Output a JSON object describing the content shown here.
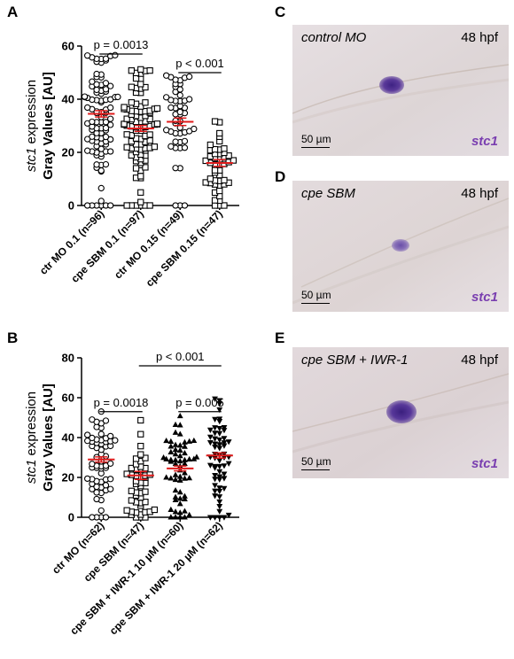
{
  "panels": {
    "A": "A",
    "B": "B",
    "C": "C",
    "D": "D",
    "E": "E"
  },
  "micrographs": [
    {
      "letter": "C",
      "condition": "control MO",
      "stage": "48 hpf",
      "gene": "stc1",
      "scale_bar": "50 µm"
    },
    {
      "letter": "D",
      "condition": "cpe SBM",
      "stage": "48 hpf",
      "gene": "stc1",
      "scale_bar": "50 µm"
    },
    {
      "letter": "E",
      "condition": "cpe SBM + IWR-1",
      "stage": "48 hpf",
      "gene": "stc1",
      "scale_bar": "50 µm"
    }
  ],
  "colors": {
    "mean_line": "#e01b1b",
    "stain": "#4b2a8f",
    "tissue": "#e4dde0",
    "gene_label": "#7a3fb0"
  },
  "chart_data": [
    {
      "type": "scatter",
      "panel": "A",
      "ylabel_gene": "stc1",
      "ylabel_rest": " expression",
      "ylabel": "Gray Values [AU]",
      "ylim": [
        0,
        60
      ],
      "yticks": [
        0,
        20,
        40,
        60
      ],
      "categories": [
        "ctr MO 0.1 (n=96)",
        "cpe SBM 0.1 (n=97)",
        "ctr MO 0.15 (n=49)",
        "cpe SBM 0.15 (n=47)"
      ],
      "markers": [
        "circle",
        "square",
        "circle",
        "square"
      ],
      "n": [
        96,
        97,
        49,
        47
      ],
      "means": [
        34.5,
        29,
        31.5,
        16
      ],
      "sems": [
        1.2,
        1.1,
        1.4,
        1.3
      ],
      "spread": [
        [
          0,
          57
        ],
        [
          0,
          52
        ],
        [
          0,
          49
        ],
        [
          0,
          36
        ]
      ],
      "comparisons": [
        {
          "label": "p = 0.0013",
          "from": 0,
          "to": 1,
          "y": 57
        },
        {
          "label": "p < 0.001",
          "from": 2,
          "to": 3,
          "y": 50
        }
      ]
    },
    {
      "type": "scatter",
      "panel": "B",
      "ylabel_gene": "stc1",
      "ylabel_rest": " expression",
      "ylabel": "Gray Values [AU]",
      "ylim": [
        0,
        80
      ],
      "yticks": [
        0,
        20,
        40,
        60,
        80
      ],
      "categories": [
        "ctr MO (n=62)",
        "cpe SBM (n=47)",
        "cpe SBM + IWR-1 10 µM (n=60)",
        "cpe SBM + IWR-1 20 µM (n=62)"
      ],
      "markers": [
        "circle",
        "square",
        "triangle-up",
        "triangle-down"
      ],
      "n": [
        62,
        47,
        60,
        62
      ],
      "means": [
        29,
        21,
        24.5,
        31
      ],
      "sems": [
        1.3,
        2,
        1.2,
        1.3
      ],
      "spread": [
        [
          0,
          54
        ],
        [
          0,
          50
        ],
        [
          0,
          51
        ],
        [
          0,
          60
        ]
      ],
      "comparisons": [
        {
          "label": "p = 0.0018",
          "from": 0,
          "to": 1,
          "y": 53
        },
        {
          "label": "p = 0.005",
          "from": 2,
          "to": 3,
          "y": 53
        },
        {
          "label": "p < 0.001",
          "from": 1,
          "to": 3,
          "y": 76
        }
      ]
    }
  ]
}
